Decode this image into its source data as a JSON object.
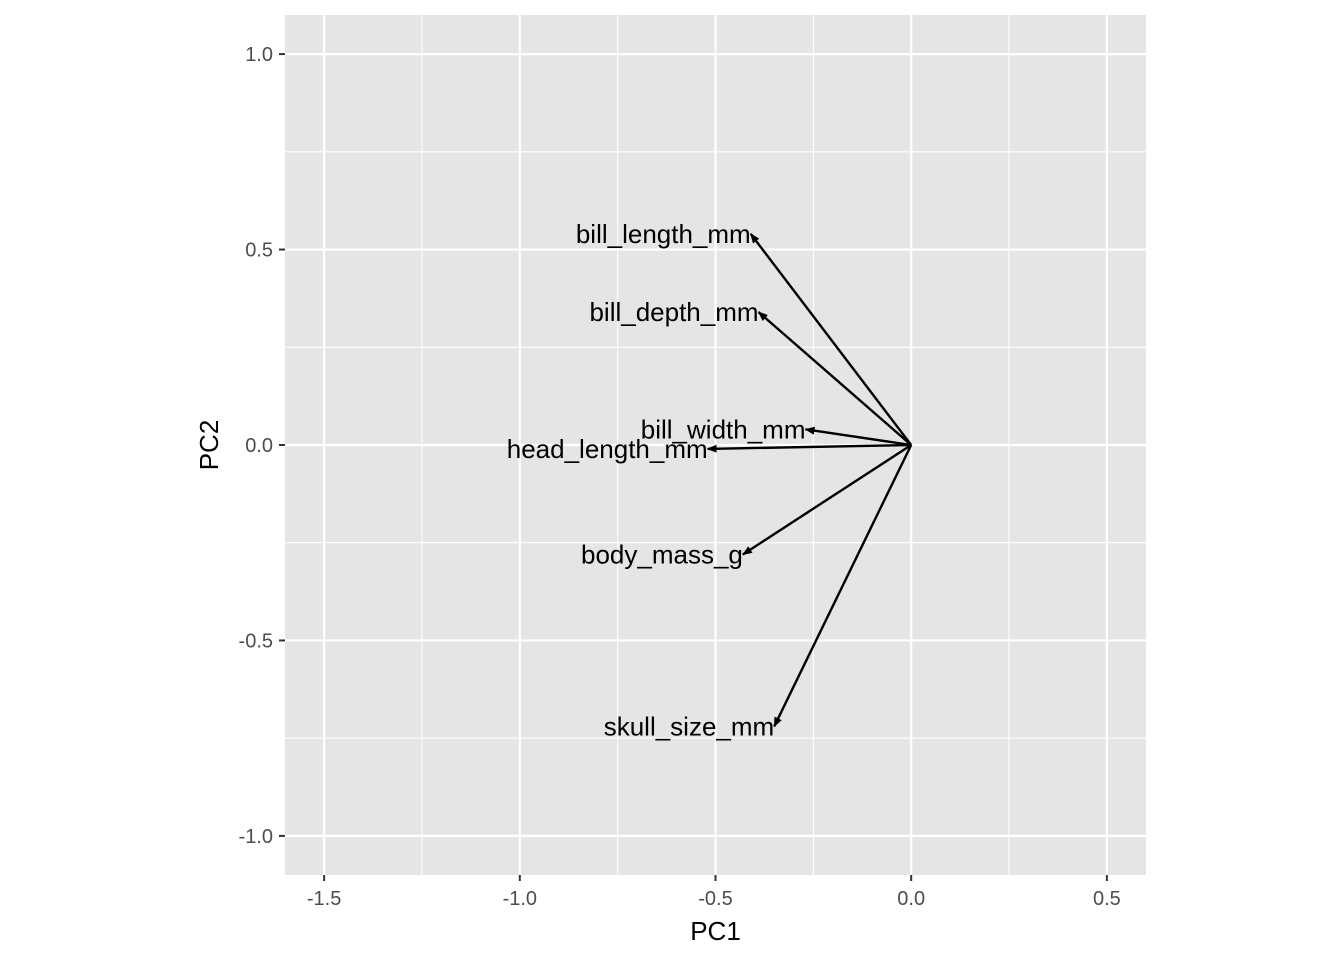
{
  "chart_data": {
    "type": "scatter",
    "subtype": "pca-loadings-biplot",
    "title": "",
    "xlabel": "PC1",
    "ylabel": "PC2",
    "xlim": [
      -1.6,
      0.6
    ],
    "ylim": [
      -1.1,
      1.1
    ],
    "x_ticks": [
      -1.5,
      -1.0,
      -0.5,
      0.0,
      0.5
    ],
    "x_tick_labels": [
      "-1.5",
      "-1.0",
      "-0.5",
      "0.0",
      "0.5"
    ],
    "y_ticks": [
      -1.0,
      -0.5,
      0.0,
      0.5,
      1.0
    ],
    "y_tick_labels": [
      "-1.0",
      "-0.5",
      "0.0",
      "0.5",
      "1.0"
    ],
    "grid": true,
    "legend": "none",
    "panel_background": "#e5e5e5",
    "grid_color": "#ffffff",
    "arrow_color": "#000000",
    "origin": [
      0,
      0
    ],
    "vectors": [
      {
        "label": "bill_length_mm",
        "x": -0.41,
        "y": 0.54
      },
      {
        "label": "bill_depth_mm",
        "x": -0.39,
        "y": 0.34
      },
      {
        "label": "bill_width_mm",
        "x": -0.27,
        "y": 0.04
      },
      {
        "label": "head_length_mm",
        "x": -0.52,
        "y": -0.01
      },
      {
        "label": "body_mass_g",
        "x": -0.43,
        "y": -0.28
      },
      {
        "label": "skull_size_mm",
        "x": -0.35,
        "y": -0.72
      }
    ]
  }
}
